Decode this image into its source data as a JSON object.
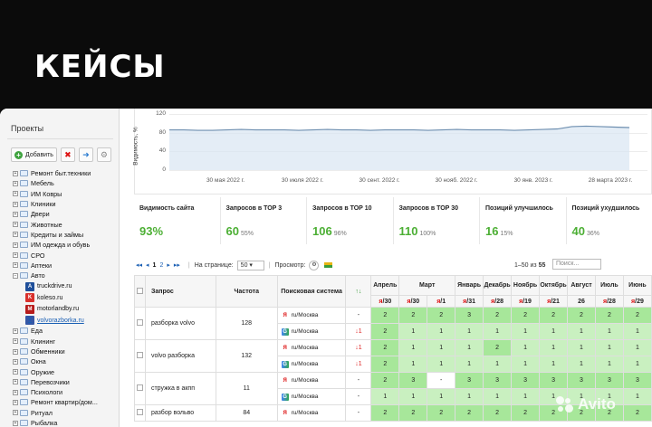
{
  "hero": {
    "title": "КЕЙСЫ"
  },
  "sidebar": {
    "title": "Проекты",
    "toolbar": {
      "add_label": "Добавить"
    },
    "items": [
      "Ремонт быт.техники",
      "Мебель",
      "ИМ Ковры",
      "Клиники",
      "Двери",
      "Животные",
      "Кредиты и займы",
      "ИМ одежда и обувь",
      "СРО",
      "Аптеки",
      "Авто"
    ],
    "auto_sites": [
      "truckdrive.ru",
      "koleso.ru",
      "motorlandby.ru",
      "volvorazborka.ru"
    ],
    "items_after": [
      "Еда",
      "Клининг",
      "Обменники",
      "Окна",
      "Оружие",
      "Перевозчики",
      "Психологи",
      "Ремонт квартир/дом...",
      "Ритуал",
      "Рыбалка"
    ]
  },
  "chart_data": {
    "type": "line",
    "ylabel": "Видимость, %",
    "ylim": [
      0,
      120
    ],
    "yticks": [
      "120",
      "80",
      "40",
      "0"
    ],
    "xticks": [
      "30 мая 2022 г.",
      "30 июля 2022 г.",
      "30 сент. 2022 г.",
      "30 нояб. 2022 г.",
      "30 янв. 2023 г.",
      "28 марта 2023 г."
    ],
    "series": [
      {
        "values": [
          86,
          86,
          85,
          85,
          86,
          87,
          86,
          86,
          86,
          85,
          86,
          87,
          86,
          86,
          85,
          86,
          86,
          86,
          85,
          86,
          87,
          86,
          86,
          86,
          85,
          86,
          87,
          88,
          93,
          94,
          93,
          92,
          91
        ]
      }
    ]
  },
  "stats": [
    {
      "label": "Видимость сайта",
      "value": "93%",
      "sub": ""
    },
    {
      "label": "Запросов в ТОР 3",
      "value": "60",
      "sub": "55%"
    },
    {
      "label": "Запросов в ТОР 10",
      "value": "106",
      "sub": "96%"
    },
    {
      "label": "Запросов в ТОР 30",
      "value": "110",
      "sub": "100%"
    },
    {
      "label": "Позиций улучшилось",
      "value": "16",
      "sub": "15%"
    },
    {
      "label": "Позиций ухудшилось",
      "value": "40",
      "sub": "36%"
    }
  ],
  "pager": {
    "prev_first": "◂◂",
    "prev": "◂",
    "page1": "1",
    "page2": "2",
    "next": "▸",
    "last": "▸▸",
    "per_page_label": "На странице:",
    "per_page_value": "50",
    "view_label": "Просмотр:",
    "range_prefix": "1–50 из",
    "range_total": "55",
    "search_placeholder": "Поиск..."
  },
  "table": {
    "headers": {
      "query": "Запрос",
      "freq": "Частота",
      "engine": "Поисковая система",
      "dir": "↑↓"
    },
    "months": [
      "Апрель",
      "Март",
      "Январь",
      "Декабрь",
      "Ноябрь",
      "Октябрь",
      "Август",
      "Июль",
      "Июнь"
    ],
    "dates": [
      "я/30",
      "я/30",
      "я/1",
      "я/31",
      "я/28",
      "я/19",
      "я/21",
      "26",
      "я/28",
      "я/29"
    ],
    "rows": [
      {
        "query": "разборка volvo",
        "freq": "128",
        "y": {
          "engine": "ru/Москва",
          "dir": "-",
          "pos": [
            "2",
            "2",
            "2",
            "3",
            "2",
            "2",
            "2",
            "2",
            "2",
            "2"
          ]
        },
        "g": {
          "engine": "ru/Москва",
          "dir": "↓1",
          "pos": [
            "2",
            "1",
            "1",
            "1",
            "1",
            "1",
            "1",
            "1",
            "1",
            "1"
          ]
        }
      },
      {
        "query": "volvo разборка",
        "freq": "132",
        "y": {
          "engine": "ru/Москва",
          "dir": "↓1",
          "pos": [
            "2",
            "1",
            "1",
            "1",
            "2",
            "1",
            "1",
            "1",
            "1",
            "1"
          ]
        },
        "g": {
          "engine": "ru/Москва",
          "dir": "↓1",
          "pos": [
            "2",
            "1",
            "1",
            "1",
            "1",
            "1",
            "1",
            "1",
            "1",
            "1"
          ]
        }
      },
      {
        "query": "стружка в акпп",
        "freq": "11",
        "y": {
          "engine": "ru/Москва",
          "dir": "-",
          "pos": [
            "2",
            "3",
            "-",
            "3",
            "3",
            "3",
            "3",
            "3",
            "3",
            "3"
          ]
        },
        "g": {
          "engine": "ru/Москва",
          "dir": "-",
          "pos": [
            "1",
            "1",
            "1",
            "1",
            "1",
            "1",
            "1",
            "1",
            "1",
            "1"
          ]
        }
      },
      {
        "query": "разбор вольво",
        "freq": "84",
        "y": {
          "engine": "ru/Москва",
          "dir": "-",
          "pos": [
            "2",
            "2",
            "2",
            "2",
            "2",
            "2",
            "2",
            "2",
            "2",
            "2"
          ]
        }
      }
    ]
  },
  "watermark": {
    "text": "Avito"
  }
}
